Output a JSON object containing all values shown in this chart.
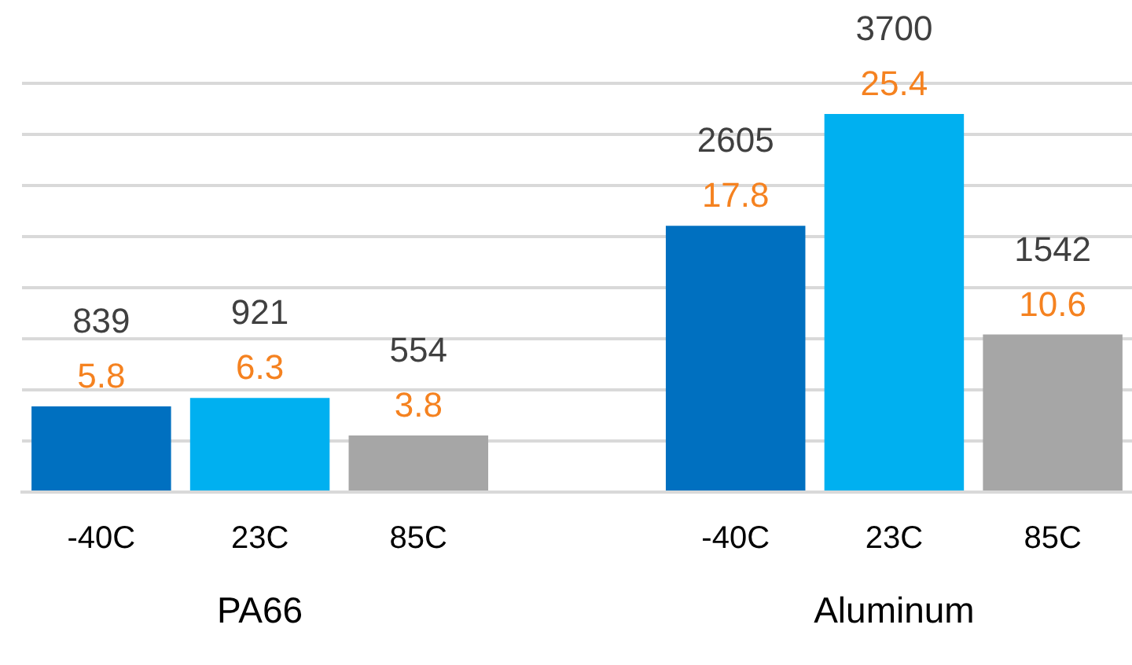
{
  "chart_data": {
    "type": "bar",
    "categories": [
      "-40C",
      "23C",
      "85C",
      null,
      "-40C",
      "23C",
      "85C"
    ],
    "values": [
      839,
      921,
      554,
      null,
      2605,
      3700,
      1542
    ],
    "colors": [
      "#0070c0",
      "#00b0f0",
      "#a6a6a6",
      "#ffffff",
      "#0070c0",
      "#00b0f0",
      "#a6a6a6"
    ],
    "value_labels": [
      "839\n5.8",
      "921\n6.3",
      "554\n3.8",
      null,
      "2605\n17.8",
      "3700\n25.4",
      "1542\n10.6"
    ],
    "annotations": [
      "PA66",
      "Aluminum"
    ],
    "ylim": [
      0,
      4000
    ],
    "yticks": [
      {
        "value": 0,
        "label": null
      },
      {
        "value": 500,
        "label": null
      },
      {
        "value": 1000,
        "label": null
      },
      {
        "value": 1500,
        "label": null
      },
      {
        "value": 2000,
        "label": null
      },
      {
        "value": 2500,
        "label": null
      },
      {
        "value": 3000,
        "label": null
      },
      {
        "value": 3500,
        "label": null
      },
      {
        "value": 4000,
        "label": null
      }
    ],
    "grid": "y",
    "tick_labels": "x",
    "legend": false
  }
}
